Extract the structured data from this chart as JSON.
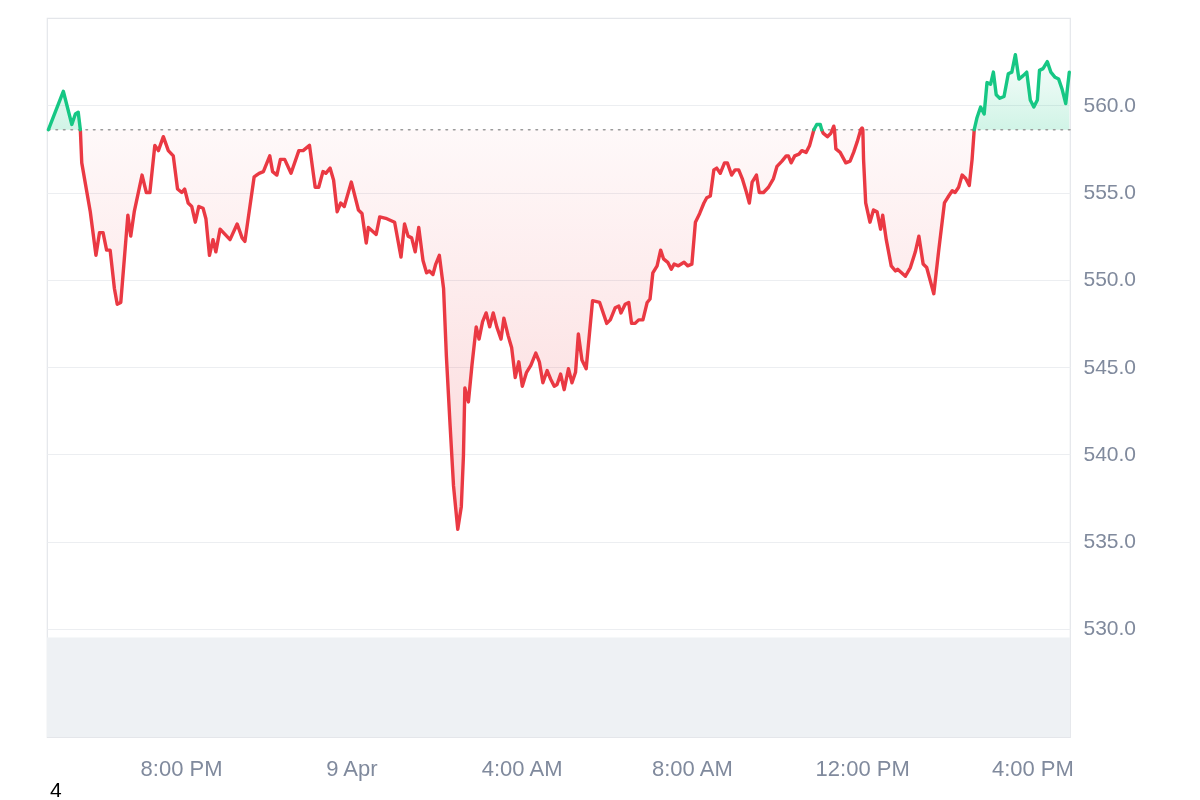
{
  "chart_data": {
    "type": "line",
    "xlim": [
      "--04-08T16:51",
      "--04-09T16:53"
    ],
    "xticks": [
      {
        "value": "--04-08T20:00",
        "label": "8:00 PM"
      },
      {
        "value": "--04-09T00:00",
        "label": "9 Apr"
      },
      {
        "value": "--04-09T04:00",
        "label": "4:00 AM"
      },
      {
        "value": "--04-09T08:00",
        "label": "8:00 AM"
      },
      {
        "value": "--04-09T12:00",
        "label": "12:00 PM"
      },
      {
        "value": "--04-09T16:00",
        "label": "4:00 PM"
      }
    ],
    "ylim": [
      523.8,
      565.0
    ],
    "yticks": [
      {
        "value": 530,
        "label": "530.0"
      },
      {
        "value": 535,
        "label": "535.0"
      },
      {
        "value": 540,
        "label": "540.0"
      },
      {
        "value": 545,
        "label": "545.0"
      },
      {
        "value": 550,
        "label": "550.0"
      },
      {
        "value": 555,
        "label": "555.0"
      },
      {
        "value": 560,
        "label": "560.0"
      }
    ],
    "grid": "y",
    "ref_lines": [
      {
        "axis": "y",
        "value": 558.6,
        "color": "#9a9a9a",
        "line_style": "dotted"
      }
    ],
    "bands": [
      {
        "axis": "y",
        "from": 523.8,
        "to": 529.5,
        "color": "#eef1f4"
      }
    ],
    "annotations": [
      "4"
    ],
    "series": [
      {
        "color": "#ea3943",
        "x": [
          "--04-08T17:38",
          "--04-08T17:40",
          "--04-08T17:52",
          "--04-08T18:00",
          "--04-08T18:05",
          "--04-08T18:10",
          "--04-08T18:15",
          "--04-08T18:20",
          "--04-08T18:26",
          "--04-08T18:30",
          "--04-08T18:35",
          "--04-08T18:45",
          "--04-08T18:49",
          "--04-08T18:54",
          "--04-08T19:05",
          "--04-08T19:11",
          "--04-08T19:16",
          "--04-08T19:23",
          "--04-08T19:28",
          "--04-08T19:35",
          "--04-08T19:42",
          "--04-08T19:49",
          "--04-08T19:55",
          "--04-08T20:01",
          "--04-08T20:05",
          "--04-08T20:10",
          "--04-08T20:15",
          "--04-08T20:20",
          "--04-08T20:25",
          "--04-08T20:31",
          "--04-08T20:35",
          "--04-08T20:40",
          "--04-08T20:45",
          "--04-08T20:49",
          "--04-08T20:55",
          "--04-08T21:02",
          "--04-08T21:09",
          "--04-08T21:19",
          "--04-08T21:26",
          "--04-08T21:30",
          "--04-08T21:43",
          "--04-08T21:50",
          "--04-08T21:56",
          "--04-08T22:05",
          "--04-08T22:09",
          "--04-08T22:15",
          "--04-08T22:20",
          "--04-08T22:26",
          "--04-08T22:35",
          "--04-08T22:46",
          "--04-08T22:52",
          "--04-08T23:01",
          "--04-08T23:09",
          "--04-08T23:14",
          "--04-08T23:20",
          "--04-08T23:24",
          "--04-08T23:30",
          "--04-08T23:35",
          "--04-08T23:40",
          "--04-08T23:45",
          "--04-08T23:50",
          "--04-09T00:00",
          "--04-09T00:10",
          "--04-09T00:15",
          "--04-09T00:21",
          "--04-09T00:24",
          "--04-09T00:35",
          "--04-09T00:40",
          "--04-09T00:50",
          "--04-09T01:01",
          "--04-09T01:10",
          "--04-09T01:15",
          "--04-09T01:20",
          "--04-09T01:25",
          "--04-09T01:30",
          "--04-09T01:35",
          "--04-09T01:41",
          "--04-09T01:46",
          "--04-09T01:50",
          "--04-09T01:55",
          "--04-09T01:59",
          "--04-09T02:04",
          "--04-09T02:10",
          "--04-09T02:14",
          "--04-09T02:19",
          "--04-09T02:24",
          "--04-09T02:30",
          "--04-09T02:35",
          "--04-09T02:38",
          "--04-09T02:40",
          "--04-09T02:45",
          "--04-09T02:50",
          "--04-09T02:56",
          "--04-09T03:00",
          "--04-09T03:05",
          "--04-09T03:10",
          "--04-09T03:15",
          "--04-09T03:20",
          "--04-09T03:25",
          "--04-09T03:31",
          "--04-09T03:35",
          "--04-09T03:41",
          "--04-09T03:46",
          "--04-09T03:51",
          "--04-09T03:56",
          "--04-09T04:01",
          "--04-09T04:07",
          "--04-09T04:13",
          "--04-09T04:20",
          "--04-09T04:25",
          "--04-09T04:30",
          "--04-09T04:36",
          "--04-09T04:41",
          "--04-09T04:46",
          "--04-09T04:50",
          "--04-09T04:55",
          "--04-09T05:00",
          "--04-09T05:06",
          "--04-09T05:11",
          "--04-09T05:16",
          "--04-09T05:20",
          "--04-09T05:25",
          "--04-09T05:31",
          "--04-09T05:40",
          "--04-09T05:50",
          "--04-09T06:00",
          "--04-09T06:05",
          "--04-09T06:12",
          "--04-09T06:17",
          "--04-09T06:20",
          "--04-09T06:26",
          "--04-09T06:31",
          "--04-09T06:35",
          "--04-09T06:40",
          "--04-09T06:45",
          "--04-09T06:51",
          "--04-09T06:57",
          "--04-09T07:01",
          "--04-09T07:05",
          "--04-09T07:11",
          "--04-09T07:16",
          "--04-09T07:20",
          "--04-09T07:26",
          "--04-09T07:31",
          "--04-09T07:35",
          "--04-09T07:41",
          "--04-09T07:49",
          "--04-09T07:54",
          "--04-09T08:00",
          "--04-09T08:05",
          "--04-09T08:11",
          "--04-09T08:17",
          "--04-09T08:21",
          "--04-09T08:26",
          "--04-09T08:31",
          "--04-09T08:35",
          "--04-09T08:40",
          "--04-09T08:46",
          "--04-09T08:50",
          "--04-09T08:56",
          "--04-09T09:01",
          "--04-09T09:06",
          "--04-09T09:11",
          "--04-09T09:17",
          "--04-09T09:21",
          "--04-09T09:25",
          "--04-09T09:31",
          "--04-09T09:35",
          "--04-09T09:41",
          "--04-09T09:48",
          "--04-09T09:55",
          "--04-09T10:00",
          "--04-09T10:07",
          "--04-09T10:13",
          "--04-09T10:16",
          "--04-09T10:20",
          "--04-09T10:25",
          "--04-09T10:31",
          "--04-09T10:35",
          "--04-09T10:41",
          "--04-09T10:46",
          "--04-09T10:52",
          "--04-09T10:57",
          "--04-09T11:03",
          "--04-09T11:05",
          "--04-09T11:11",
          "--04-09T11:16",
          "--04-09T11:18",
          "--04-09T11:20",
          "--04-09T11:21",
          "--04-09T11:23",
          "--04-09T11:29",
          "--04-09T11:37",
          "--04-09T11:43",
          "--04-09T11:48",
          "--04-09T11:53",
          "--04-09T11:58",
          "--04-09T12:00",
          "--04-09T12:01",
          "--04-09T12:02",
          "--04-09T12:05",
          "--04-09T12:11",
          "--04-09T12:16",
          "--04-09T12:21",
          "--04-09T12:26",
          "--04-09T12:29",
          "--04-09T12:34",
          "--04-09T12:41",
          "--04-09T12:47",
          "--04-09T12:50",
          "--04-09T13:01",
          "--04-09T13:08",
          "--04-09T13:15",
          "--04-09T13:20",
          "--04-09T13:26",
          "--04-09T13:31",
          "--04-09T13:41",
          "--04-09T13:48",
          "--04-09T13:56",
          "--04-09T14:02",
          "--04-09T14:07",
          "--04-09T14:11",
          "--04-09T14:16",
          "--04-09T14:21",
          "--04-09T14:26",
          "--04-09T14:31",
          "--04-09T14:35",
          "--04-09T14:38"
        ],
        "values": [
          558.6,
          556.7,
          553.9,
          551.4,
          552.7,
          552.7,
          551.7,
          551.7,
          549.5,
          548.6,
          548.7,
          553.7,
          552.5,
          553.9,
          556.0,
          555.0,
          555.0,
          557.7,
          557.4,
          558.2,
          557.4,
          557.1,
          555.2,
          555.0,
          555.2,
          554.4,
          554.2,
          553.3,
          554.2,
          554.1,
          553.5,
          551.4,
          552.3,
          551.6,
          552.9,
          552.6,
          552.3,
          553.2,
          552.4,
          552.2,
          555.9,
          556.1,
          556.2,
          557.1,
          556.2,
          556.0,
          556.9,
          556.9,
          556.1,
          557.4,
          557.4,
          557.7,
          555.3,
          555.3,
          556.2,
          556.1,
          556.4,
          555.7,
          553.9,
          554.4,
          554.2,
          555.6,
          554.0,
          553.8,
          552.1,
          553.0,
          552.6,
          553.6,
          553.5,
          553.3,
          551.3,
          553.2,
          552.5,
          552.4,
          551.6,
          553.0,
          551.1,
          550.4,
          550.5,
          550.3,
          550.9,
          551.4,
          549.5,
          545.6,
          541.8,
          538.2,
          535.7,
          537.0,
          539.9,
          543.8,
          543.0,
          545.1,
          547.3,
          546.6,
          547.6,
          548.1,
          547.3,
          548.1,
          547.3,
          546.6,
          547.8,
          546.8,
          546.1,
          544.4,
          545.3,
          543.9,
          544.7,
          545.1,
          545.8,
          545.3,
          544.1,
          544.8,
          544.3,
          543.9,
          544.0,
          544.6,
          543.7,
          544.9,
          544.1,
          544.7,
          546.9,
          545.4,
          544.9,
          548.8,
          548.7,
          547.5,
          547.7,
          548.4,
          548.5,
          548.1,
          548.6,
          548.7,
          547.5,
          547.5,
          547.7,
          547.7,
          548.7,
          548.9,
          550.4,
          550.8,
          551.7,
          551.2,
          551.0,
          550.6,
          550.9,
          550.8,
          551.0,
          550.8,
          550.9,
          553.3,
          553.8,
          554.4,
          554.7,
          554.8,
          556.3,
          556.4,
          556.1,
          556.7,
          556.7,
          556.0,
          556.3,
          556.3,
          555.8,
          555.0,
          554.4,
          555.6,
          556.0,
          555.0,
          555.0,
          555.3,
          555.8,
          556.5,
          556.8,
          557.1,
          557.1,
          556.7,
          557.1,
          557.2,
          557.4,
          557.3,
          557.7,
          558.6,
          null,
          558.6,
          558.4,
          558.2,
          558.4,
          558.6,
          558.8,
          558.6,
          557.5,
          557.3,
          556.7,
          556.8,
          557.3,
          557.9,
          558.6,
          558.7,
          558.6,
          556.9,
          554.4,
          553.3,
          554.0,
          553.9,
          552.9,
          553.7,
          552.3,
          550.8,
          550.5,
          550.6,
          550.2,
          550.7,
          551.6,
          552.5,
          550.9,
          550.7,
          549.2,
          551.7,
          554.4,
          554.8,
          555.1,
          555.0,
          555.3,
          556.0,
          555.8,
          555.4,
          556.9,
          558.6
        ],
        "lower": [
          558.6,
          556.7,
          553.9,
          551.4,
          552.7,
          552.7,
          551.7,
          551.7,
          549.5,
          548.6,
          548.7,
          553.7,
          552.5,
          553.9,
          556.0,
          555.0,
          555.0,
          557.7,
          557.4,
          558.2,
          557.4,
          557.1,
          555.2,
          555.0,
          555.2,
          554.4,
          554.2,
          553.3,
          554.2,
          554.1,
          553.5,
          551.4,
          552.3,
          551.6,
          552.9,
          552.6,
          552.3,
          553.2,
          552.4,
          552.2,
          555.9,
          556.1,
          556.2,
          557.1,
          556.2,
          556.0,
          556.9,
          556.9,
          556.1,
          557.4,
          557.4,
          557.7,
          555.3,
          555.3,
          556.2,
          556.1,
          556.4,
          555.7,
          553.9,
          554.4,
          554.2,
          555.6,
          554.0,
          553.8,
          552.1,
          553.0,
          552.6,
          553.6,
          553.5,
          553.3,
          551.3,
          553.2,
          552.5,
          552.4,
          551.6,
          553.0,
          551.1,
          550.4,
          550.5,
          550.3,
          550.9,
          551.4,
          549.5,
          545.6,
          541.8,
          538.2,
          535.7,
          537.0,
          539.9,
          543.8,
          543.0,
          545.1,
          547.3,
          546.6,
          547.6,
          548.1,
          547.3,
          548.1,
          547.3,
          546.6,
          547.8,
          546.8,
          546.1,
          544.4,
          545.3,
          543.9,
          544.7,
          545.1,
          545.8,
          545.3,
          544.1,
          544.8,
          544.3,
          543.9,
          544.0,
          544.6,
          543.7,
          544.9,
          544.1,
          544.7,
          546.9,
          545.4,
          544.9,
          548.8,
          548.7,
          547.5,
          547.7,
          548.4,
          548.5,
          548.1,
          548.6,
          548.7,
          547.5,
          547.5,
          547.7,
          547.7,
          548.7,
          548.9,
          550.4,
          550.8,
          551.7,
          551.2,
          551.0,
          550.6,
          550.9,
          550.8,
          551.0,
          550.8,
          550.9,
          553.3,
          553.8,
          554.4,
          554.7,
          554.8,
          556.3,
          556.4,
          556.1,
          556.7,
          556.7,
          556.0,
          556.3,
          556.3,
          555.8,
          555.0,
          554.4,
          555.6,
          556.0,
          555.0,
          555.0,
          555.3,
          555.8,
          556.5,
          556.8,
          557.1,
          557.1,
          556.7,
          557.1,
          557.2,
          557.4,
          557.3,
          557.7,
          558.6,
          null,
          558.6,
          558.4,
          558.2,
          558.4,
          558.6,
          null,
          558.6,
          557.5,
          557.3,
          556.7,
          556.8,
          557.3,
          557.9,
          558.6,
          null,
          558.6,
          556.9,
          554.4,
          553.3,
          554.0,
          553.9,
          552.9,
          553.7,
          552.3,
          550.8,
          550.5,
          550.6,
          550.2,
          550.7,
          551.6,
          552.5,
          550.9,
          550.7,
          549.2,
          551.7,
          554.4,
          554.8,
          555.1,
          555.0,
          555.3,
          556.0,
          555.8,
          555.4,
          556.9,
          558.6
        ],
        "upper": [
          558.6,
          558.6,
          558.6,
          558.6,
          558.6,
          558.6,
          558.6,
          558.6,
          558.6,
          558.6,
          558.6,
          558.6,
          558.6,
          558.6,
          558.6,
          558.6,
          558.6,
          558.6,
          558.6,
          558.6,
          558.6,
          558.6,
          558.6,
          558.6,
          558.6,
          558.6,
          558.6,
          558.6,
          558.6,
          558.6,
          558.6,
          558.6,
          558.6,
          558.6,
          558.6,
          558.6,
          558.6,
          558.6,
          558.6,
          558.6,
          558.6,
          558.6,
          558.6,
          558.6,
          558.6,
          558.6,
          558.6,
          558.6,
          558.6,
          558.6,
          558.6,
          558.6,
          558.6,
          558.6,
          558.6,
          558.6,
          558.6,
          558.6,
          558.6,
          558.6,
          558.6,
          558.6,
          558.6,
          558.6,
          558.6,
          558.6,
          558.6,
          558.6,
          558.6,
          558.6,
          558.6,
          558.6,
          558.6,
          558.6,
          558.6,
          558.6,
          558.6,
          558.6,
          558.6,
          558.6,
          558.6,
          558.6,
          558.6,
          558.6,
          558.6,
          558.6,
          558.6,
          558.6,
          558.6,
          558.6,
          558.6,
          558.6,
          558.6,
          558.6,
          558.6,
          558.6,
          558.6,
          558.6,
          558.6,
          558.6,
          558.6,
          558.6,
          558.6,
          558.6,
          558.6,
          558.6,
          558.6,
          558.6,
          558.6,
          558.6,
          558.6,
          558.6,
          558.6,
          558.6,
          558.6,
          558.6,
          558.6,
          558.6,
          558.6,
          558.6,
          558.6,
          558.6,
          558.6,
          558.6,
          558.6,
          558.6,
          558.6,
          558.6,
          558.6,
          558.6,
          558.6,
          558.6,
          558.6,
          558.6,
          558.6,
          558.6,
          558.6,
          558.6,
          558.6,
          558.6,
          558.6,
          558.6,
          558.6,
          558.6,
          558.6,
          558.6,
          558.6,
          558.6,
          558.6,
          558.6,
          558.6,
          558.6,
          558.6,
          558.6,
          558.6,
          558.6,
          558.6,
          558.6,
          558.6,
          558.6,
          558.6,
          558.6,
          558.6,
          558.6,
          558.6,
          558.6,
          558.6,
          558.6,
          558.6,
          558.6,
          558.6,
          558.6,
          558.6,
          558.6,
          558.6,
          558.6,
          558.6,
          558.6,
          558.6,
          558.6,
          558.6,
          558.6,
          null,
          558.6,
          558.6,
          558.6,
          558.6,
          558.6,
          null,
          558.6,
          558.6,
          558.6,
          558.6,
          558.6,
          558.6,
          558.6,
          558.6,
          null,
          558.6,
          558.6,
          558.6,
          558.6,
          558.6,
          558.6,
          558.6,
          558.6,
          558.6,
          558.6,
          558.6,
          558.6,
          558.6,
          558.6,
          558.6,
          558.6,
          558.6,
          558.6,
          558.6,
          558.6,
          558.6,
          558.6,
          558.6,
          558.6,
          558.6,
          558.6,
          558.6,
          558.6,
          558.6,
          558.6
        ]
      },
      {
        "color": "#16c784",
        "x": [
          "--04-08T16:53",
          "--04-08T17:14",
          "--04-08T17:26",
          "--04-08T17:31",
          "--04-08T17:35",
          "--04-08T17:38",
          "--04-09T02:15",
          "--04-09T10:52",
          "--04-09T10:56",
          "--04-09T11:01",
          "--04-09T11:03",
          "--04-09T12:50",
          "--04-09T14:38",
          "--04-09T14:42",
          "--04-09T14:47",
          "--04-09T14:52",
          "--04-09T14:56",
          "--04-09T15:01",
          "--04-09T15:05",
          "--04-09T15:09",
          "--04-09T15:14",
          "--04-09T15:20",
          "--04-09T15:26",
          "--04-09T15:31",
          "--04-09T15:36",
          "--04-09T15:41",
          "--04-09T15:47",
          "--04-09T15:52",
          "--04-09T15:57",
          "--04-09T16:02",
          "--04-09T16:07",
          "--04-09T16:10",
          "--04-09T16:15",
          "--04-09T16:21",
          "--04-09T16:26",
          "--04-09T16:32",
          "--04-09T16:37",
          "--04-09T16:42",
          "--04-09T16:47",
          "--04-09T16:52"
        ],
        "values": [
          558.6,
          560.8,
          558.9,
          559.5,
          559.6,
          558.6,
          null,
          558.6,
          558.9,
          558.9,
          558.6,
          null,
          558.6,
          559.3,
          559.9,
          559.5,
          561.3,
          561.2,
          561.9,
          560.6,
          560.4,
          560.5,
          561.8,
          561.9,
          562.9,
          561.5,
          561.7,
          561.9,
          560.3,
          559.9,
          560.3,
          562.0,
          562.1,
          562.5,
          561.9,
          561.6,
          561.5,
          560.9,
          560.1,
          561.9
        ],
        "lower": [
          558.6,
          558.6,
          558.6,
          558.6,
          558.6,
          558.6,
          null,
          null,
          null,
          null,
          null,
          null,
          558.6,
          558.6,
          558.6,
          558.6,
          558.6,
          558.6,
          558.6,
          558.6,
          558.6,
          558.6,
          558.6,
          558.6,
          558.6,
          558.6,
          558.6,
          558.6,
          558.6,
          558.6,
          558.6,
          558.6,
          558.6,
          558.6,
          558.6,
          558.6,
          558.6,
          558.6,
          558.6,
          558.6
        ],
        "upper": [
          558.6,
          560.8,
          558.9,
          559.5,
          559.6,
          558.6,
          null,
          null,
          null,
          null,
          null,
          null,
          558.6,
          559.3,
          559.9,
          559.5,
          561.3,
          561.2,
          561.9,
          560.6,
          560.4,
          560.5,
          561.8,
          561.9,
          562.9,
          561.5,
          561.7,
          561.9,
          560.3,
          559.9,
          560.3,
          562.0,
          562.1,
          562.5,
          561.9,
          561.6,
          561.5,
          560.9,
          560.1,
          561.9
        ]
      }
    ]
  }
}
